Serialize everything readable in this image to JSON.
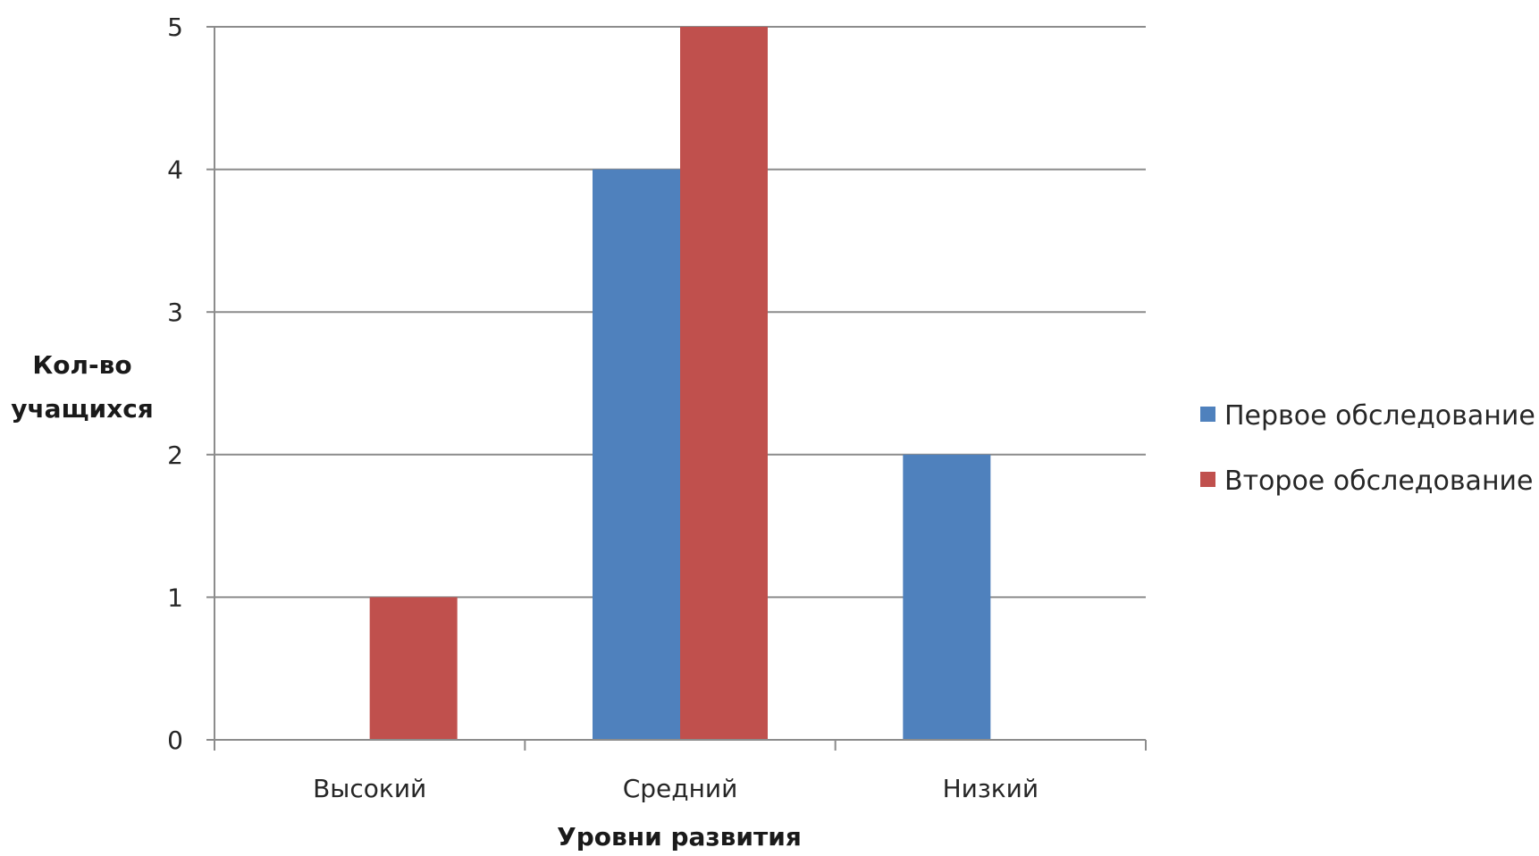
{
  "chart_data": {
    "type": "bar",
    "title": "",
    "categories": [
      "Высокий",
      "Средний",
      "Низкий"
    ],
    "series": [
      {
        "name": "Первое обследование",
        "values": [
          0,
          4,
          2
        ],
        "color": "#4f81bd"
      },
      {
        "name": "Второе обследование",
        "values": [
          1,
          5,
          0
        ],
        "color": "#c0504d"
      }
    ],
    "xlabel": "Уровни развития",
    "ylabel": [
      "Кол-во",
      "учащихся"
    ],
    "ylim": [
      0,
      5
    ],
    "yticks": [
      "0",
      "1",
      "2",
      "3",
      "4",
      "5"
    ],
    "grid": true,
    "legend": "right"
  }
}
